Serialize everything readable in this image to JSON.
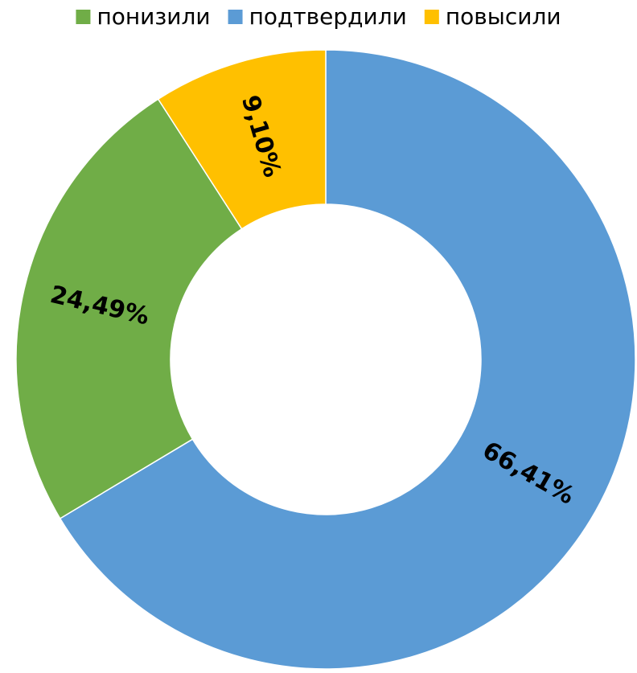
{
  "chart_data": {
    "type": "donut",
    "categories": [
      "понизили",
      "подтвердили",
      "повысили"
    ],
    "series": [
      {
        "values": [
          24.49,
          66.41,
          9.1
        ],
        "value_labels": [
          "24,49%",
          "66,41%",
          "9,10%"
        ],
        "colors": [
          "#70ad47",
          "#5b9bd5",
          "#ffc000"
        ]
      }
    ],
    "legend": "top"
  }
}
